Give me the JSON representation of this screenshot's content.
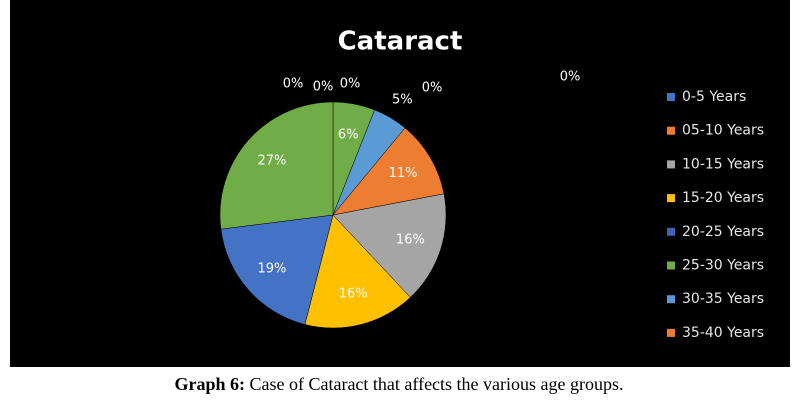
{
  "chart_data": {
    "type": "pie",
    "title": "Cataract",
    "categories": [
      "0-5 Years",
      "05-10 Years",
      "10-15 Years",
      "15-20 Years",
      "20-25 Years",
      "25-30 Years",
      "30-35 Years",
      "35-40 Years",
      null,
      null,
      null,
      null
    ],
    "values": [
      0,
      0,
      0,
      0,
      0,
      6,
      5,
      11,
      16,
      16,
      19,
      27
    ],
    "value_labels": [
      "0%",
      "0%",
      "0%",
      "0%",
      "0%",
      "6%",
      "5%",
      "11%",
      "16%",
      "16%",
      "19%",
      "27%"
    ],
    "colors": [
      "#4472c4",
      "#ed7d31",
      "#a5a5a5",
      "#ffc000",
      "#3f64b5",
      "#70ad47",
      "#5b9bd5",
      "#ed7d31",
      "#a5a5a5",
      "#ffc000",
      "#4472c4",
      "#70ad47"
    ],
    "legend": "right"
  },
  "caption": {
    "label": "Graph 6:",
    "text": "Case of Cataract that affects the various age groups."
  }
}
